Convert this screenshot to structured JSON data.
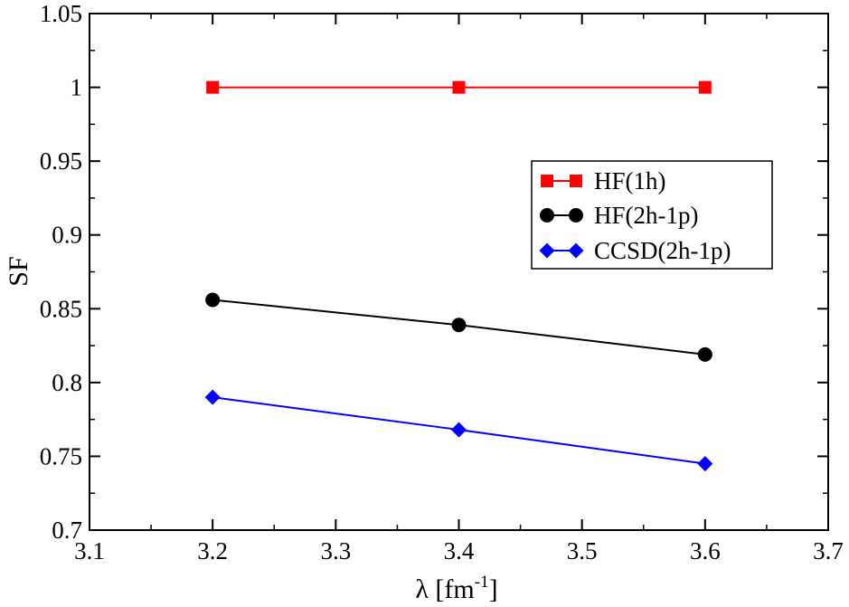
{
  "chart_data": {
    "type": "line",
    "title": "",
    "xlabel": "λ [fm",
    "xlabel_superscript": "-1",
    "xlabel_close": "]",
    "ylabel": "SF",
    "xlim": [
      3.1,
      3.7
    ],
    "ylim": [
      0.7,
      1.05
    ],
    "x_ticks": [
      "3.1",
      "3.2",
      "3.3",
      "3.4",
      "3.5",
      "3.6",
      "3.7"
    ],
    "y_ticks": [
      "0.7",
      "0.75",
      "0.8",
      "0.85",
      "0.9",
      "0.95",
      "1",
      "1.05"
    ],
    "x": [
      3.2,
      3.4,
      3.6
    ],
    "grid": false,
    "legend_position": "right",
    "series": [
      {
        "name": "HF(1h)",
        "values": [
          1.0,
          1.0,
          1.0
        ],
        "color": "#ff0000",
        "marker": "square"
      },
      {
        "name": "HF(2h-1p)",
        "values": [
          0.856,
          0.839,
          0.819
        ],
        "color": "#000000",
        "marker": "circle"
      },
      {
        "name": "CCSD(2h-1p)",
        "values": [
          0.79,
          0.768,
          0.745
        ],
        "color": "#0000ff",
        "marker": "diamond"
      }
    ]
  }
}
